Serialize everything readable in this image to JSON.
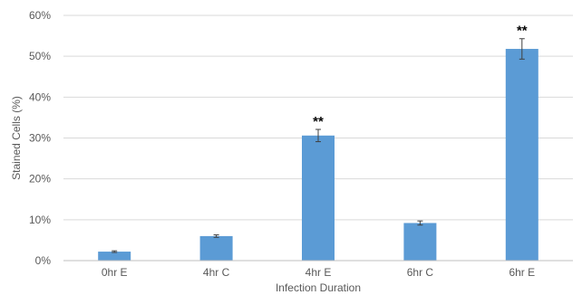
{
  "chart_data": {
    "type": "bar",
    "title": "",
    "xlabel": "Infection Duration",
    "ylabel": "Stained Cells (%)",
    "categories": [
      "0hr E",
      "4hr C",
      "4hr E",
      "6hr C",
      "6hr E"
    ],
    "values": [
      2.2,
      6.0,
      30.6,
      9.2,
      51.8
    ],
    "errors": [
      0.2,
      0.3,
      1.5,
      0.5,
      2.5
    ],
    "annotations": [
      "",
      "",
      "**",
      "",
      "**"
    ],
    "ylim": [
      0,
      60
    ],
    "yticks": [
      0,
      10,
      20,
      30,
      40,
      50,
      60
    ],
    "ytick_labels": [
      "0%",
      "10%",
      "20%",
      "30%",
      "40%",
      "50%",
      "60%"
    ],
    "grid": true,
    "bar_color": "#5b9bd5"
  }
}
